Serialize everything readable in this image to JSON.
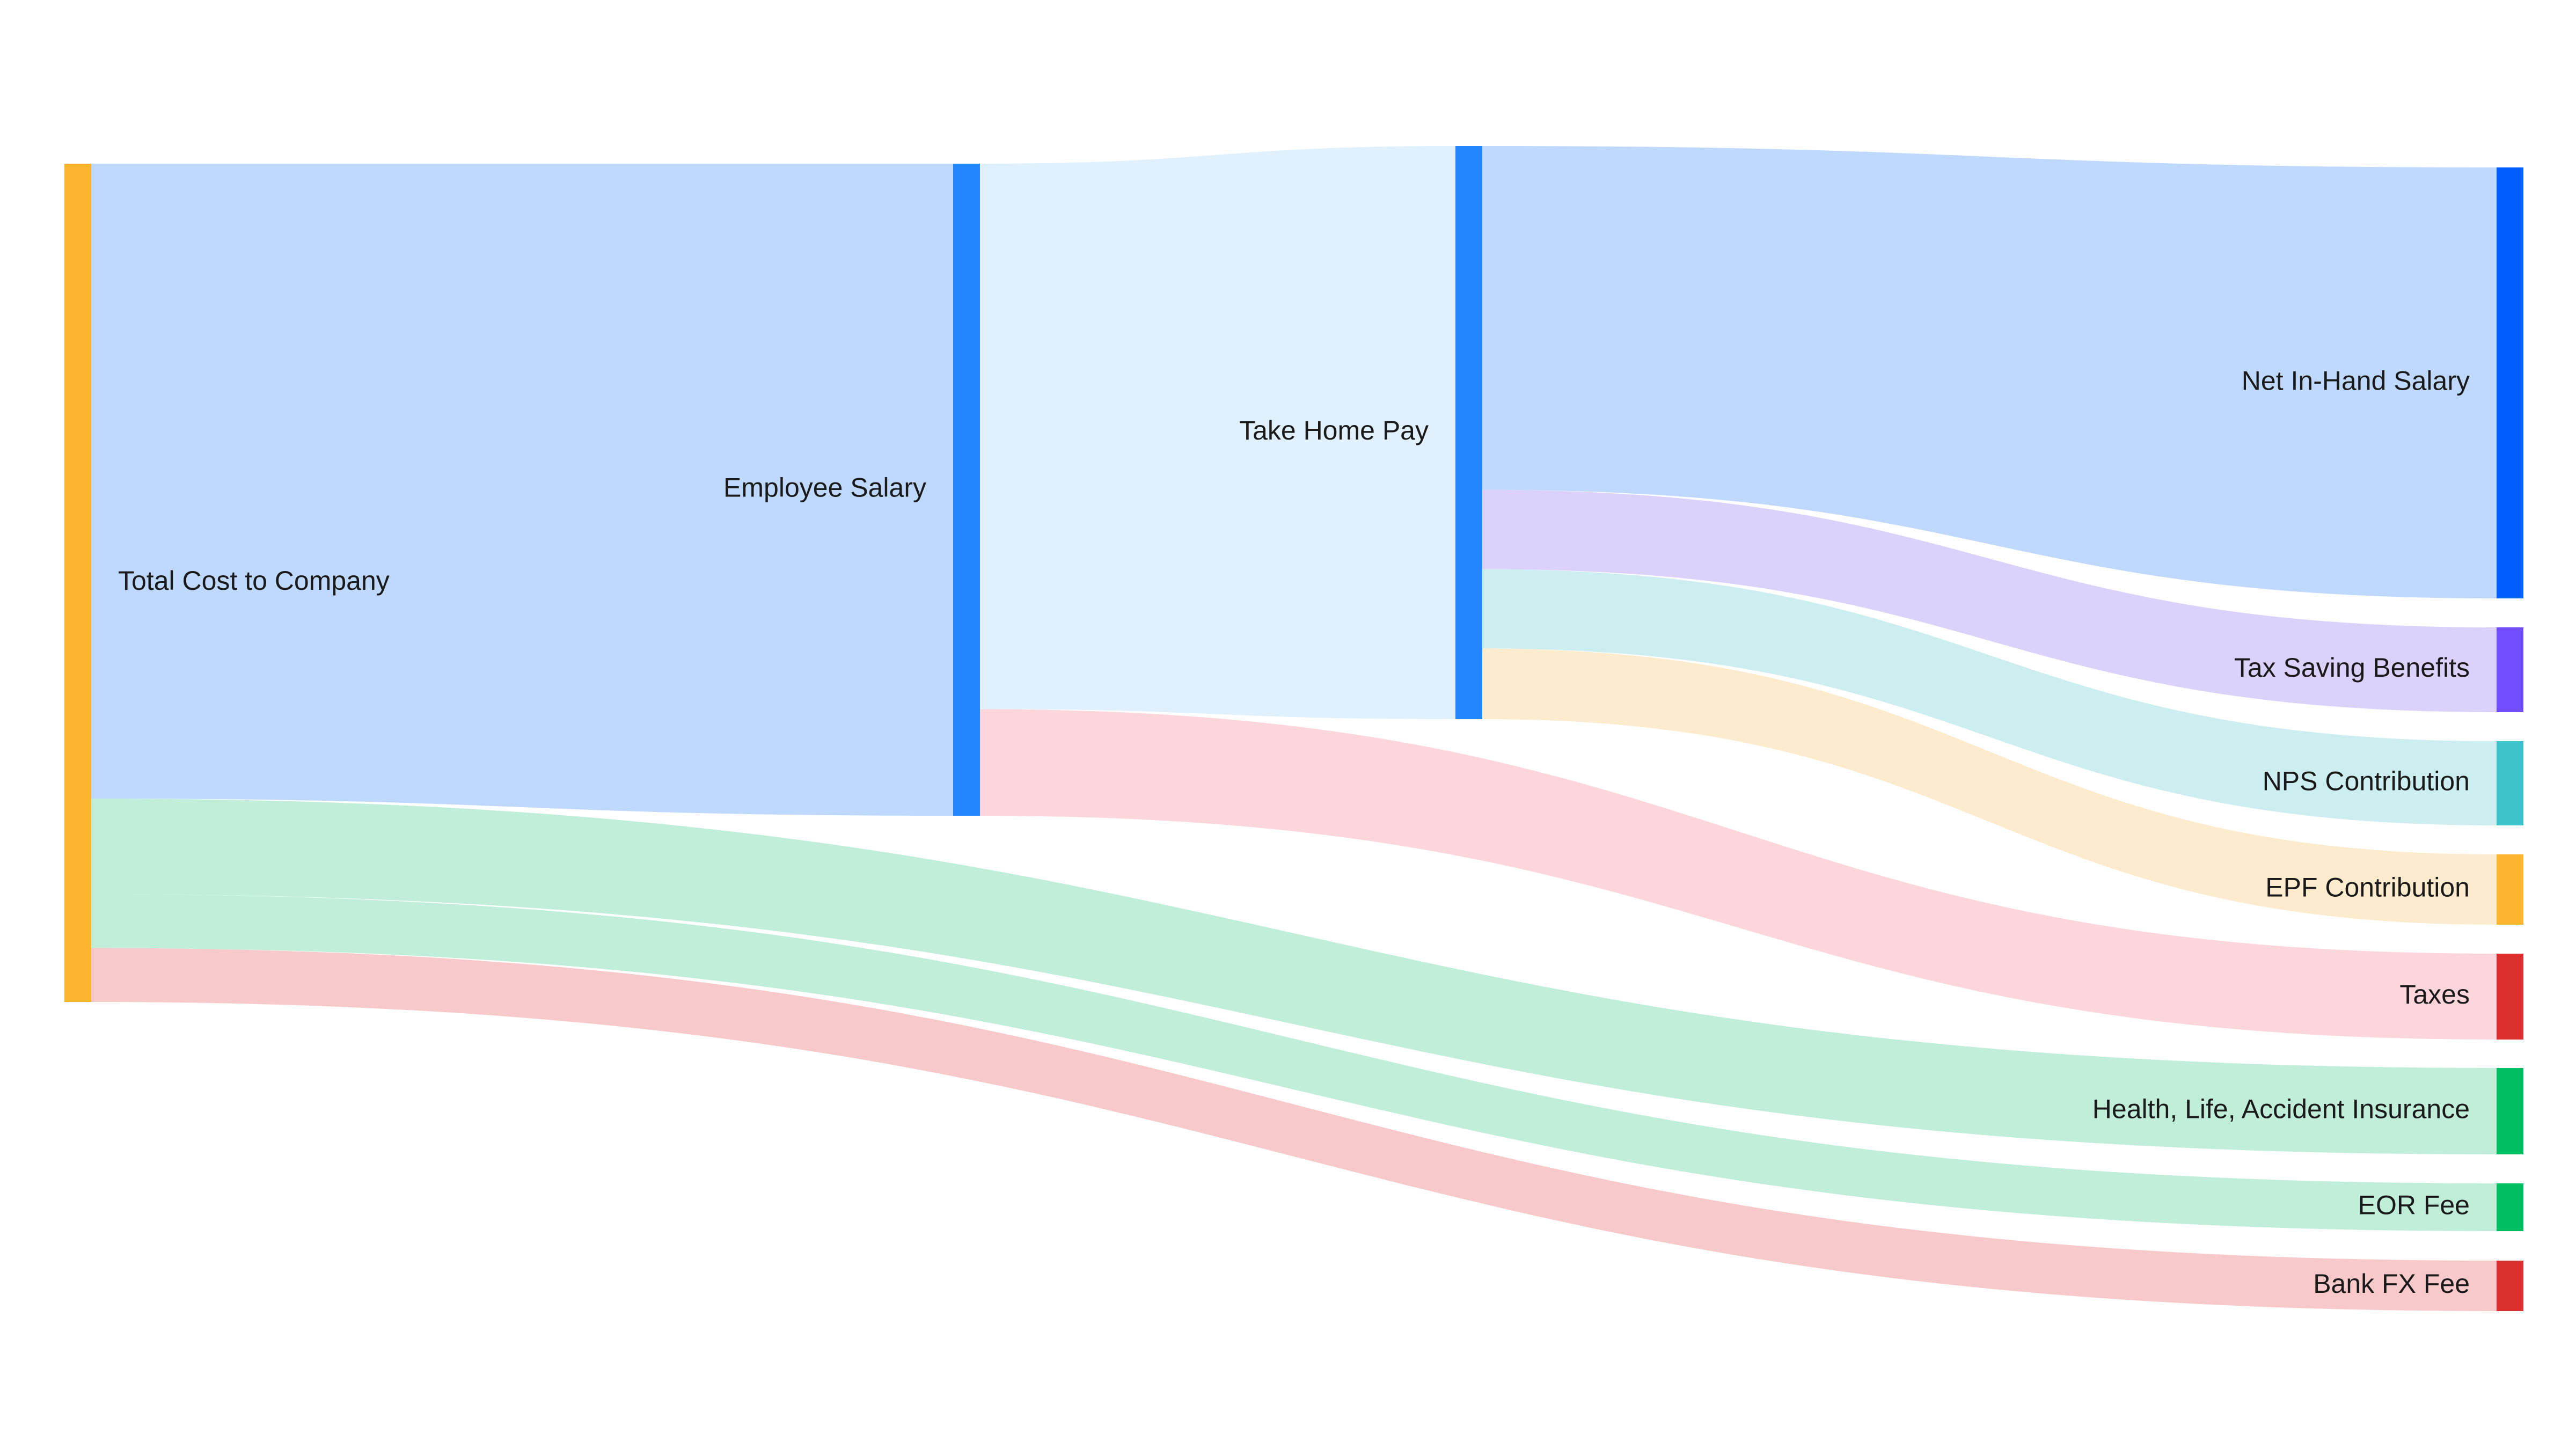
{
  "chart_data": {
    "type": "sankey",
    "nodes": [
      {
        "id": "total",
        "label": "Total Cost to Company",
        "color": "#FDB52F"
      },
      {
        "id": "salary",
        "label": "Employee Salary",
        "color": "#2388FF"
      },
      {
        "id": "takehome",
        "label": "Take Home Pay",
        "color": "#2388FF"
      },
      {
        "id": "net",
        "label": "Net In-Hand Salary",
        "color": "#005EFF"
      },
      {
        "id": "taxsaving",
        "label": "Tax Saving Benefits",
        "color": "#704DFF"
      },
      {
        "id": "nps",
        "label": "NPS Contribution",
        "color": "#3CC3CC"
      },
      {
        "id": "epf",
        "label": "EPF Contribution",
        "color": "#FDB52F"
      },
      {
        "id": "taxes",
        "label": "Taxes",
        "color": "#DB2F2F"
      },
      {
        "id": "insurance",
        "label": "Health, Life, Accident Insurance",
        "color": "#00BF63"
      },
      {
        "id": "eor",
        "label": "EOR Fee",
        "color": "#00BF63"
      },
      {
        "id": "bankfx",
        "label": "Bank FX Fee",
        "color": "#DB2F2F"
      }
    ],
    "links": [
      {
        "source": "total",
        "target": "salary",
        "value": 76.5,
        "color": "#BFD8FE"
      },
      {
        "source": "total",
        "target": "insurance",
        "value": 11.5,
        "color": "#C0EED9"
      },
      {
        "source": "total",
        "target": "eor",
        "value": 6.5,
        "color": "#C0EED9"
      },
      {
        "source": "total",
        "target": "bankfx",
        "value": 6.5,
        "color": "#F8C9CB"
      },
      {
        "source": "salary",
        "target": "takehome",
        "value": 64,
        "color": "#E1F0FD"
      },
      {
        "source": "salary",
        "target": "taxes",
        "value": 12.5,
        "color": "#FDD6DB"
      },
      {
        "source": "takehome",
        "target": "net",
        "value": 39,
        "color": "#BFD8FE"
      },
      {
        "source": "takehome",
        "target": "taxsaving",
        "value": 9,
        "color": "#DCD1FB"
      },
      {
        "source": "takehome",
        "target": "nps",
        "value": 9,
        "color": "#CDEEF0"
      },
      {
        "source": "takehome",
        "target": "epf",
        "value": 8,
        "color": "#FDEBCD"
      }
    ]
  }
}
